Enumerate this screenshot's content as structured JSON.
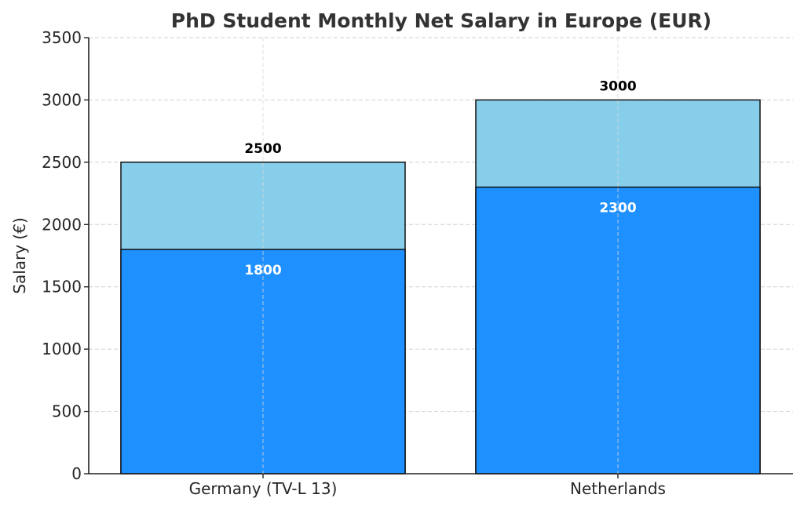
{
  "chart_data": {
    "type": "bar",
    "stacked": "overlay",
    "title": "PhD Student Monthly Net Salary in Europe (EUR)",
    "xlabel": "",
    "ylabel": "Salary (€)",
    "ylim": [
      0,
      3500
    ],
    "yticks": [
      0,
      500,
      1000,
      1500,
      2000,
      2500,
      3000,
      3500
    ],
    "grid": true,
    "categories": [
      "Germany (TV-L 13)",
      "Netherlands"
    ],
    "series": [
      {
        "id": "upper",
        "values": [
          2500,
          3000
        ],
        "color": "#87CEEB",
        "label_color": "#000000",
        "label_position": "above"
      },
      {
        "id": "lower",
        "values": [
          1800,
          2300
        ],
        "color": "#1E90FF",
        "label_color": "#FFFFFF",
        "label_position": "inside-top"
      }
    ]
  }
}
